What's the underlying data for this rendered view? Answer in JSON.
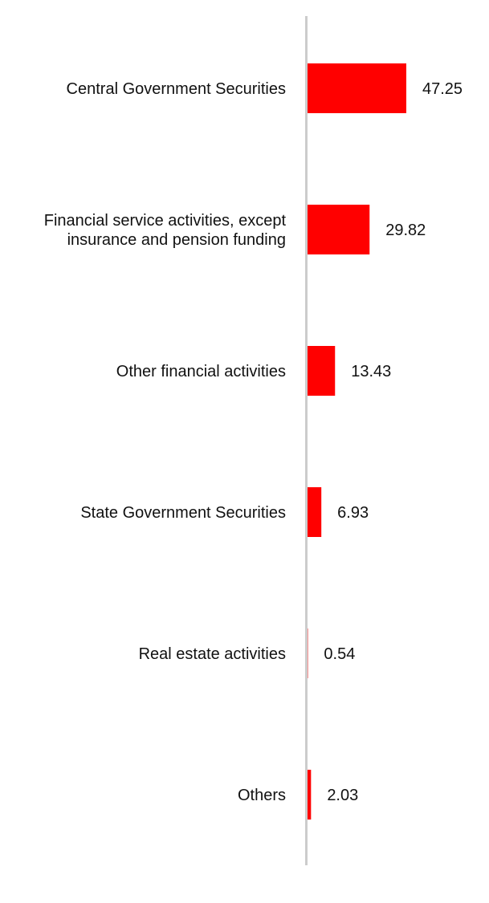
{
  "chart_data": {
    "type": "bar",
    "orientation": "horizontal",
    "categories": [
      [
        "Central Government Securities"
      ],
      [
        "Financial service activities, except",
        "insurance and pension funding"
      ],
      [
        "Other financial activities"
      ],
      [
        "State Government Securities"
      ],
      [
        "Real estate activities"
      ],
      [
        "Others"
      ]
    ],
    "values": [
      47.25,
      29.82,
      13.43,
      6.93,
      0.54,
      2.03
    ],
    "value_labels": [
      "47.25",
      "29.82",
      "13.43",
      "6.93",
      "0.54",
      "2.03"
    ],
    "xlim": [
      0,
      47.25
    ],
    "grid": false,
    "legend": "none",
    "bar_color": "#ff0000",
    "axis_color": "#cccccc"
  }
}
